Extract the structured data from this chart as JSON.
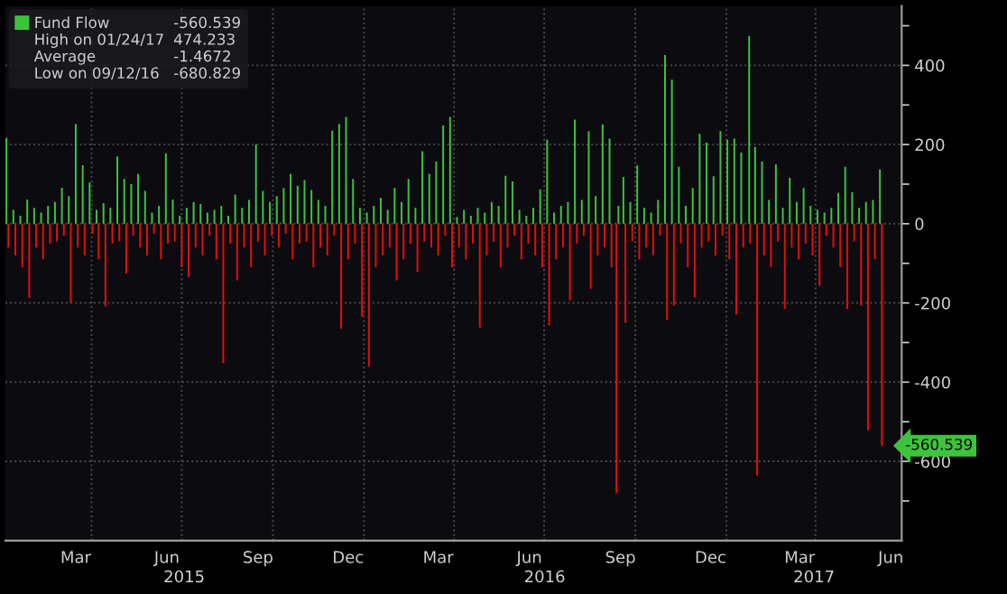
{
  "chart_data": {
    "type": "bar",
    "series": [
      {
        "name": "Fund Flow",
        "color": "#3cc43c",
        "x": [
          "2015-01-05",
          "2015-01-12",
          "2015-01-19",
          "2015-01-26",
          "2015-02-02",
          "2015-02-09",
          "2015-02-16",
          "2015-02-23",
          "2015-03-02",
          "2015-03-09",
          "2015-03-16",
          "2015-03-23",
          "2015-03-30",
          "2015-04-06",
          "2015-04-13",
          "2015-04-20",
          "2015-04-27",
          "2015-05-04",
          "2015-05-11",
          "2015-05-18",
          "2015-05-25",
          "2015-06-01",
          "2015-06-08",
          "2015-06-15",
          "2015-06-22",
          "2015-06-29",
          "2015-07-06",
          "2015-07-13",
          "2015-07-20",
          "2015-07-27",
          "2015-08-03",
          "2015-08-10",
          "2015-08-17",
          "2015-08-24",
          "2015-08-31",
          "2015-09-07",
          "2015-09-14",
          "2015-09-21",
          "2015-09-28",
          "2015-10-05",
          "2015-10-12",
          "2015-10-19",
          "2015-10-26",
          "2015-11-02",
          "2015-11-09",
          "2015-11-16",
          "2015-11-23",
          "2015-11-30",
          "2015-12-07",
          "2015-12-14",
          "2015-12-21",
          "2015-12-28",
          "2016-01-04",
          "2016-01-11",
          "2016-01-18",
          "2016-01-25",
          "2016-02-01",
          "2016-02-08",
          "2016-02-15",
          "2016-02-22",
          "2016-02-29",
          "2016-03-07",
          "2016-03-14",
          "2016-03-21",
          "2016-03-28",
          "2016-04-04",
          "2016-04-11",
          "2016-04-18",
          "2016-04-25",
          "2016-05-02",
          "2016-05-09",
          "2016-05-16",
          "2016-05-23",
          "2016-05-30",
          "2016-06-06",
          "2016-06-13",
          "2016-06-20",
          "2016-06-27",
          "2016-07-04",
          "2016-07-11",
          "2016-07-18",
          "2016-07-25",
          "2016-08-01",
          "2016-08-08",
          "2016-08-15",
          "2016-08-22",
          "2016-08-29",
          "2016-09-05",
          "2016-09-14",
          "2016-09-19",
          "2016-09-26",
          "2016-10-03",
          "2016-10-10",
          "2016-10-17",
          "2016-10-24",
          "2016-10-31",
          "2016-11-07",
          "2016-11-14",
          "2016-11-21",
          "2016-11-28",
          "2016-12-05",
          "2016-12-12",
          "2016-12-19",
          "2016-12-26",
          "2017-01-02",
          "2017-01-09",
          "2017-01-16",
          "2017-01-24",
          "2017-01-30",
          "2017-02-06",
          "2017-02-13",
          "2017-02-20",
          "2017-02-27",
          "2017-03-06",
          "2017-03-13",
          "2017-03-20",
          "2017-03-27",
          "2017-04-03",
          "2017-04-10",
          "2017-04-17",
          "2017-04-24",
          "2017-05-01",
          "2017-05-08",
          "2017-05-15",
          "2017-05-22",
          "2017-05-29",
          "2017-06-05"
        ],
        "values": [
          217,
          35,
          20,
          61,
          40,
          28,
          45,
          55,
          91,
          70,
          252,
          148,
          104,
          35,
          52,
          40,
          170,
          113,
          100,
          126,
          83,
          28,
          45,
          178,
          61,
          20,
          40,
          55,
          50,
          28,
          35,
          45,
          20,
          74,
          40,
          60,
          200,
          83,
          55,
          70,
          90,
          126,
          96,
          110,
          85,
          60,
          45,
          235,
          252,
          270,
          113,
          40,
          28,
          45,
          65,
          35,
          91,
          55,
          113,
          40,
          183,
          126,
          157,
          248,
          270,
          17,
          35,
          20,
          40,
          28,
          55,
          45,
          121,
          107,
          35,
          20,
          40,
          87,
          212,
          28,
          45,
          55,
          263,
          60,
          234,
          70,
          251,
          215,
          45,
          118,
          55,
          147,
          40,
          28,
          60,
          426,
          364,
          144,
          45,
          90,
          227,
          205,
          120,
          234,
          212,
          215,
          180,
          474.233,
          194,
          157,
          60,
          150,
          40,
          116,
          55,
          90,
          45,
          35,
          28,
          40,
          78,
          144,
          80,
          40,
          55,
          60,
          137
        ]
      },
      {
        "color": "#e80c0c",
        "x": [
          "2015-01-07",
          "2015-01-14",
          "2015-01-21",
          "2015-01-28",
          "2015-02-04",
          "2015-02-11",
          "2015-02-18",
          "2015-02-25",
          "2015-03-04",
          "2015-03-11",
          "2015-03-18",
          "2015-03-25",
          "2015-04-02",
          "2015-04-08",
          "2015-04-15",
          "2015-04-22",
          "2015-04-29",
          "2015-05-06",
          "2015-05-13",
          "2015-05-20",
          "2015-05-27",
          "2015-06-03",
          "2015-06-10",
          "2015-06-17",
          "2015-06-24",
          "2015-07-01",
          "2015-07-08",
          "2015-07-15",
          "2015-07-22",
          "2015-07-29",
          "2015-08-05",
          "2015-08-12",
          "2015-08-19",
          "2015-08-26",
          "2015-09-02",
          "2015-09-09",
          "2015-09-16",
          "2015-09-23",
          "2015-09-30",
          "2015-10-07",
          "2015-10-14",
          "2015-10-21",
          "2015-10-28",
          "2015-11-04",
          "2015-11-11",
          "2015-11-18",
          "2015-11-25",
          "2015-12-02",
          "2015-12-09",
          "2015-12-16",
          "2015-12-23",
          "2015-12-30",
          "2016-01-06",
          "2016-01-13",
          "2016-01-20",
          "2016-01-27",
          "2016-02-03",
          "2016-02-10",
          "2016-02-17",
          "2016-02-24",
          "2016-03-02",
          "2016-03-09",
          "2016-03-16",
          "2016-03-23",
          "2016-03-30",
          "2016-04-06",
          "2016-04-13",
          "2016-04-20",
          "2016-04-27",
          "2016-05-04",
          "2016-05-11",
          "2016-05-18",
          "2016-05-25",
          "2016-06-01",
          "2016-06-08",
          "2016-06-15",
          "2016-06-22",
          "2016-06-29",
          "2016-07-06",
          "2016-07-13",
          "2016-07-20",
          "2016-07-27",
          "2016-08-03",
          "2016-08-10",
          "2016-08-17",
          "2016-08-24",
          "2016-08-31",
          "2016-09-07",
          "2016-09-12",
          "2016-09-21",
          "2016-09-28",
          "2016-10-05",
          "2016-10-12",
          "2016-10-19",
          "2016-10-26",
          "2016-11-02",
          "2016-11-09",
          "2016-11-16",
          "2016-11-23",
          "2016-11-30",
          "2016-12-07",
          "2016-12-14",
          "2016-12-21",
          "2016-12-28",
          "2017-01-04",
          "2017-01-11",
          "2017-01-18",
          "2017-01-25",
          "2017-02-01",
          "2017-02-08",
          "2017-02-15",
          "2017-02-22",
          "2017-03-01",
          "2017-03-08",
          "2017-03-15",
          "2017-03-22",
          "2017-03-29",
          "2017-04-05",
          "2017-04-12",
          "2017-04-19",
          "2017-04-26",
          "2017-05-03",
          "2017-05-10",
          "2017-05-17",
          "2017-05-24",
          "2017-05-31",
          "2017-06-07"
        ],
        "values": [
          -60,
          -80,
          -110,
          -187,
          -60,
          -90,
          -50,
          -45,
          -30,
          -200,
          -60,
          -80,
          -25,
          -90,
          -209,
          -50,
          -45,
          -126,
          -30,
          -60,
          -80,
          -25,
          -90,
          -50,
          -45,
          -110,
          -135,
          -60,
          -80,
          -30,
          -90,
          -352,
          -50,
          -143,
          -60,
          -110,
          -45,
          -80,
          -30,
          -60,
          -25,
          -90,
          -50,
          -45,
          -110,
          -60,
          -80,
          -30,
          -265,
          -90,
          -50,
          -235,
          -361,
          -110,
          -80,
          -60,
          -143,
          -90,
          -50,
          -122,
          -45,
          -60,
          -80,
          -30,
          -110,
          -60,
          -90,
          -50,
          -262,
          -80,
          -45,
          -110,
          -60,
          -30,
          -90,
          -50,
          -80,
          -110,
          -257,
          -90,
          -60,
          -193,
          -50,
          -30,
          -164,
          -80,
          -60,
          -110,
          -680.829,
          -250,
          -45,
          -90,
          -60,
          -80,
          -30,
          -243,
          -207,
          -50,
          -110,
          -186,
          -60,
          -45,
          -80,
          -30,
          -90,
          -229,
          -60,
          -50,
          -636,
          -80,
          -110,
          -45,
          -215,
          -60,
          -90,
          -50,
          -80,
          -157,
          -30,
          -60,
          -110,
          -215,
          -45,
          -207,
          -522,
          -90,
          -560.539
        ]
      }
    ],
    "annotations": [
      "-560.539",
      "High on 01/24/17",
      "474.233",
      "Average",
      "-1.4672",
      "Low on 09/12/16",
      "-680.829",
      {
        "text": "-560.539",
        "x": "2017-06-07",
        "y": -560.539
      },
      "2015",
      "2016",
      "2017"
    ],
    "xlim": [
      "2015-01-04",
      "2017-06-27"
    ],
    "xticks": [
      {
        "value": "2015-03-16",
        "label": "Mar"
      },
      {
        "value": "2015-04-01",
        "label": null
      },
      {
        "value": "2015-06-16",
        "label": "Jun"
      },
      {
        "value": "2015-07-01",
        "label": null
      },
      {
        "value": "2015-09-16",
        "label": "Sep"
      },
      {
        "value": "2015-10-01",
        "label": null
      },
      {
        "value": "2015-12-16",
        "label": "Dec"
      },
      {
        "value": "2016-01-01",
        "label": null
      },
      {
        "value": "2016-03-16",
        "label": "Mar"
      },
      {
        "value": "2016-04-01",
        "label": null
      },
      {
        "value": "2016-06-16",
        "label": "Jun"
      },
      {
        "value": "2016-07-01",
        "label": null
      },
      {
        "value": "2016-09-16",
        "label": "Sep"
      },
      {
        "value": "2016-10-01",
        "label": null
      },
      {
        "value": "2016-12-16",
        "label": "Dec"
      },
      {
        "value": "2017-01-01",
        "label": null
      },
      {
        "value": "2017-03-16",
        "label": "Mar"
      },
      {
        "value": "2017-04-01",
        "label": null
      },
      {
        "value": "2017-06-16",
        "label": "Jun"
      }
    ],
    "ylim": [
      -800,
      550
    ],
    "yticks": [
      {
        "value": -700,
        "label": null
      },
      -600,
      {
        "value": -500,
        "label": null
      },
      -400,
      {
        "value": -300,
        "label": null
      },
      -200,
      {
        "value": -100,
        "label": null
      },
      0,
      {
        "value": 100,
        "label": null
      },
      200,
      {
        "value": 300,
        "label": null
      },
      400,
      {
        "value": 500,
        "label": null
      }
    ],
    "grid": true,
    "legend": "top left"
  }
}
